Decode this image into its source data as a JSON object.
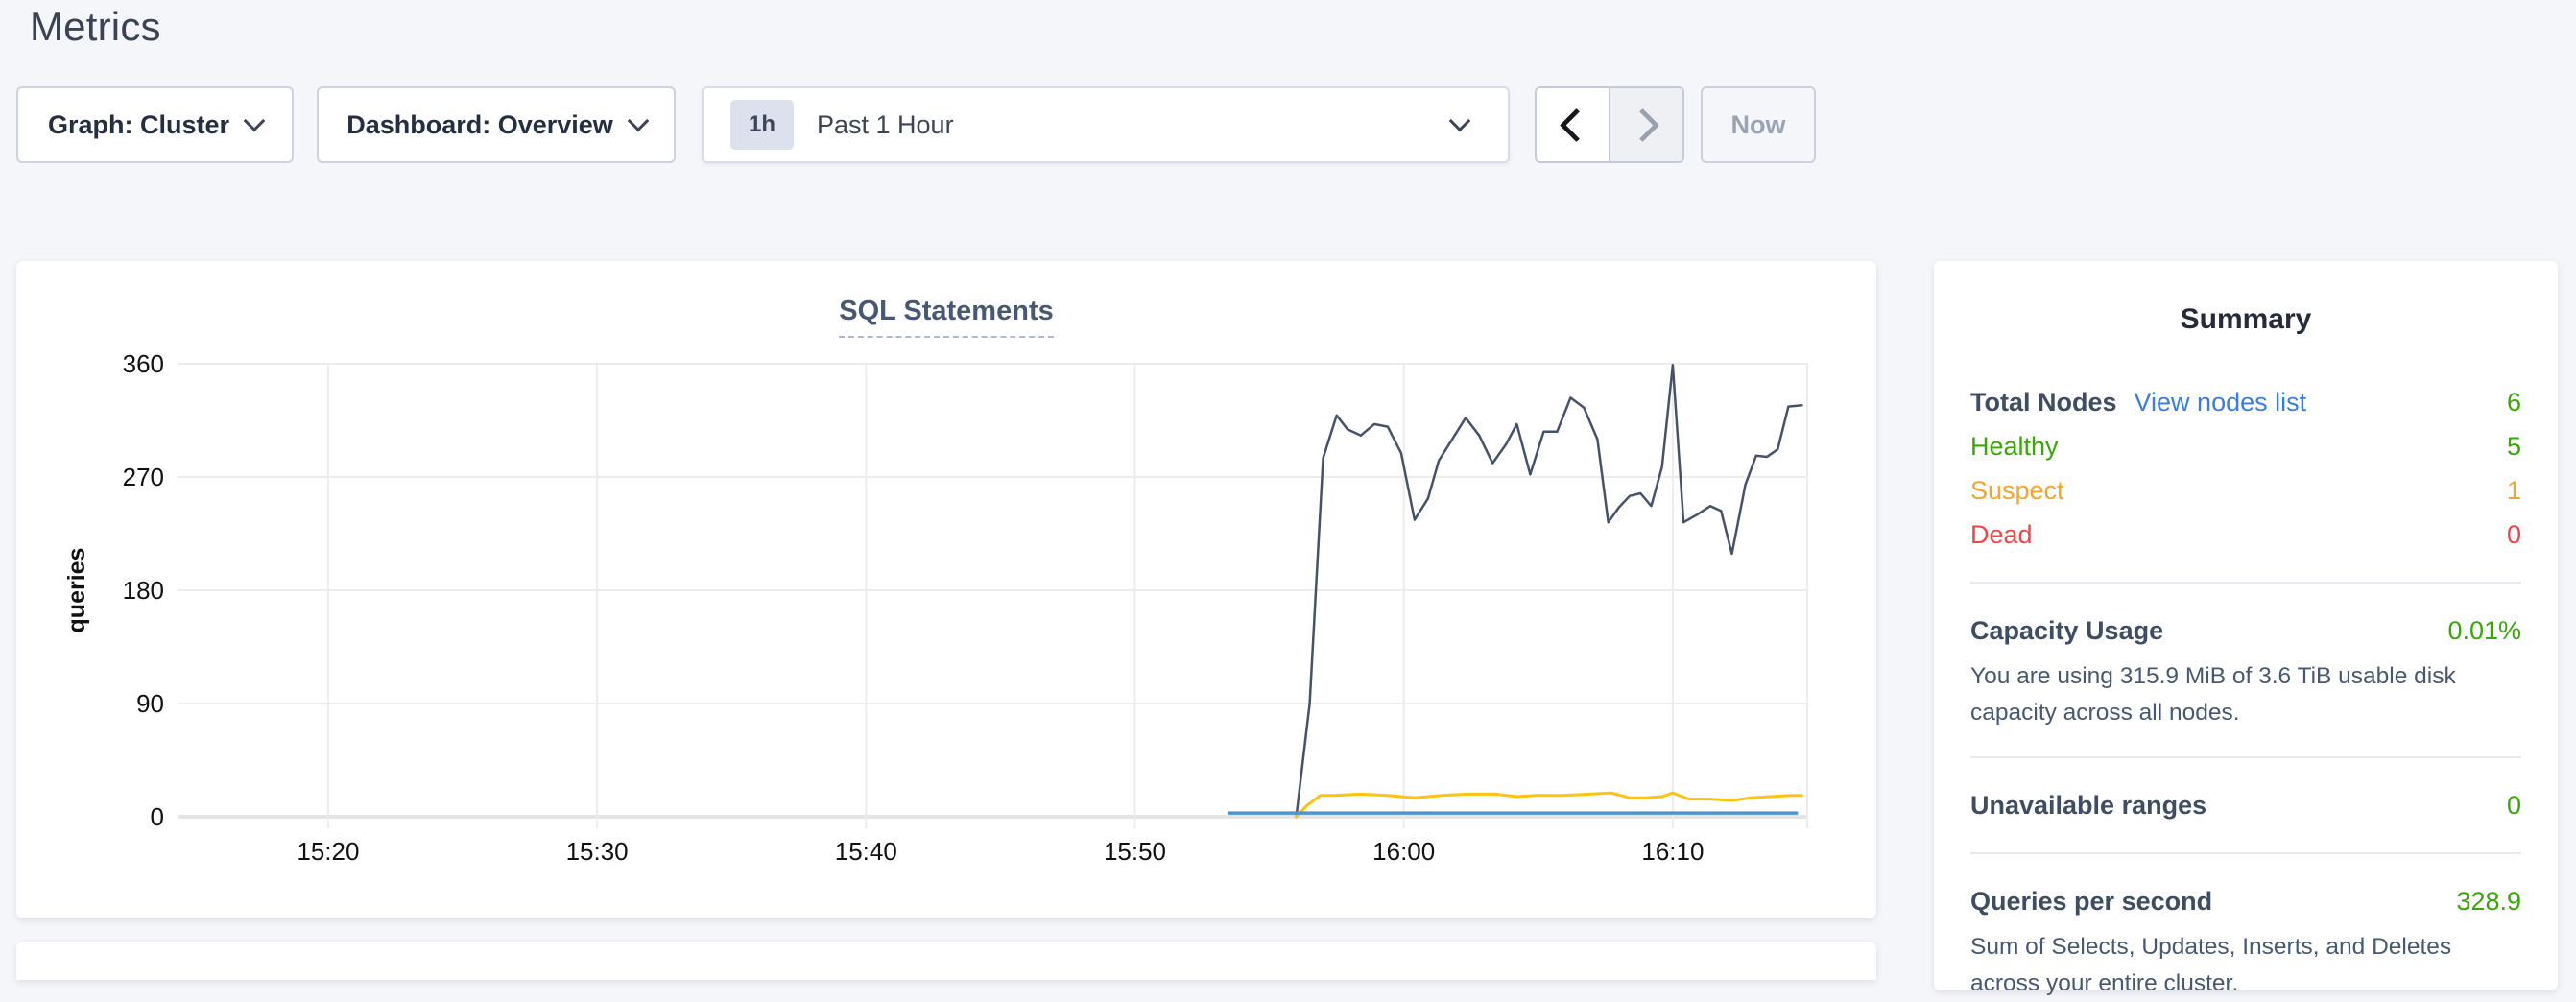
{
  "page": {
    "title": "Metrics"
  },
  "toolbar": {
    "graph_dropdown_label": "Graph: Cluster",
    "dashboard_dropdown_label": "Dashboard: Overview",
    "time_window": {
      "badge": "1h",
      "label": "Past 1 Hour"
    },
    "now_button_label": "Now"
  },
  "chart_data": {
    "type": "line",
    "title": "SQL Statements",
    "xlabel": "",
    "ylabel": "queries",
    "grid": true,
    "legend": "none",
    "xlim_minutes": [
      0,
      60.6
    ],
    "ylim": [
      0,
      360
    ],
    "y_ticks": [
      0,
      90,
      180,
      270,
      360
    ],
    "x_ticks": [
      {
        "pos": 5.6,
        "label": "15:20"
      },
      {
        "pos": 15.6,
        "label": "15:30"
      },
      {
        "pos": 25.6,
        "label": "15:40"
      },
      {
        "pos": 35.6,
        "label": "15:50"
      },
      {
        "pos": 45.6,
        "label": "16:00"
      },
      {
        "pos": 55.6,
        "label": "16:10"
      }
    ],
    "series": [
      {
        "name": "statements-dark-navy",
        "color": "#44526a",
        "width": 2.5,
        "points": [
          [
            41.6,
            0
          ],
          [
            42.1,
            90
          ],
          [
            42.6,
            285
          ],
          [
            43.1,
            319
          ],
          [
            43.5,
            308
          ],
          [
            44.0,
            303
          ],
          [
            44.5,
            312
          ],
          [
            45.0,
            310
          ],
          [
            45.5,
            289
          ],
          [
            46.0,
            236
          ],
          [
            46.5,
            253
          ],
          [
            46.9,
            283
          ],
          [
            47.4,
            300
          ],
          [
            47.9,
            317
          ],
          [
            48.4,
            303
          ],
          [
            48.9,
            281
          ],
          [
            49.4,
            296
          ],
          [
            49.8,
            312
          ],
          [
            50.3,
            272
          ],
          [
            50.8,
            306
          ],
          [
            51.3,
            306
          ],
          [
            51.8,
            333
          ],
          [
            52.3,
            325
          ],
          [
            52.8,
            300
          ],
          [
            53.2,
            234
          ],
          [
            53.6,
            246
          ],
          [
            54.0,
            255
          ],
          [
            54.4,
            257
          ],
          [
            54.8,
            247
          ],
          [
            55.2,
            278
          ],
          [
            55.6,
            359
          ],
          [
            56.0,
            234
          ],
          [
            56.5,
            240
          ],
          [
            57.0,
            247
          ],
          [
            57.4,
            243
          ],
          [
            57.8,
            209
          ],
          [
            58.3,
            264
          ],
          [
            58.7,
            287
          ],
          [
            59.1,
            286
          ],
          [
            59.5,
            292
          ],
          [
            59.9,
            326
          ],
          [
            60.4,
            327
          ]
        ]
      },
      {
        "name": "statements-yellow",
        "color": "#fdc30e",
        "width": 3,
        "points": [
          [
            41.6,
            0
          ],
          [
            42.0,
            9
          ],
          [
            42.5,
            17
          ],
          [
            43.0,
            17
          ],
          [
            44.0,
            18
          ],
          [
            45.0,
            17
          ],
          [
            45.5,
            16
          ],
          [
            46.0,
            15
          ],
          [
            47.0,
            17
          ],
          [
            48.0,
            18
          ],
          [
            49.0,
            18
          ],
          [
            49.8,
            16
          ],
          [
            50.5,
            17
          ],
          [
            51.5,
            17
          ],
          [
            52.5,
            18
          ],
          [
            53.3,
            19
          ],
          [
            54.0,
            15
          ],
          [
            54.6,
            15
          ],
          [
            55.2,
            16
          ],
          [
            55.6,
            19
          ],
          [
            56.2,
            14
          ],
          [
            57.0,
            14
          ],
          [
            57.8,
            13
          ],
          [
            58.5,
            15
          ],
          [
            59.2,
            16
          ],
          [
            60.0,
            17
          ],
          [
            60.4,
            17
          ]
        ]
      },
      {
        "name": "statements-blue",
        "color": "#5093ce",
        "width": 3.5,
        "points": [
          [
            39.1,
            3
          ],
          [
            60.2,
            3
          ]
        ]
      }
    ]
  },
  "summary": {
    "title": "Summary",
    "nodes": {
      "label": "Total Nodes",
      "link": "View nodes list",
      "value": "6",
      "rows": [
        {
          "label": "Healthy",
          "value": "5",
          "status": "green"
        },
        {
          "label": "Suspect",
          "value": "1",
          "status": "orange"
        },
        {
          "label": "Dead",
          "value": "0",
          "status": "red"
        }
      ]
    },
    "capacity": {
      "label": "Capacity Usage",
      "value": "0.01%",
      "description": "You are using 315.9 MiB of 3.6 TiB usable disk capacity across all nodes."
    },
    "unavailable_ranges": {
      "label": "Unavailable ranges",
      "value": "0"
    },
    "queries_per_second": {
      "label": "Queries per second",
      "value": "328.9",
      "description": "Sum of Selects, Updates, Inserts, and Deletes across your entire cluster."
    }
  },
  "colors": {
    "background": "#f5f6fa",
    "healthy_green": "#37a806",
    "suspect_orange": "#f7a428",
    "dead_red": "#ee4546",
    "link_blue": "#3a7de0",
    "series_navy": "#44526a",
    "series_yellow": "#fdc30e",
    "series_blue": "#5093ce"
  }
}
